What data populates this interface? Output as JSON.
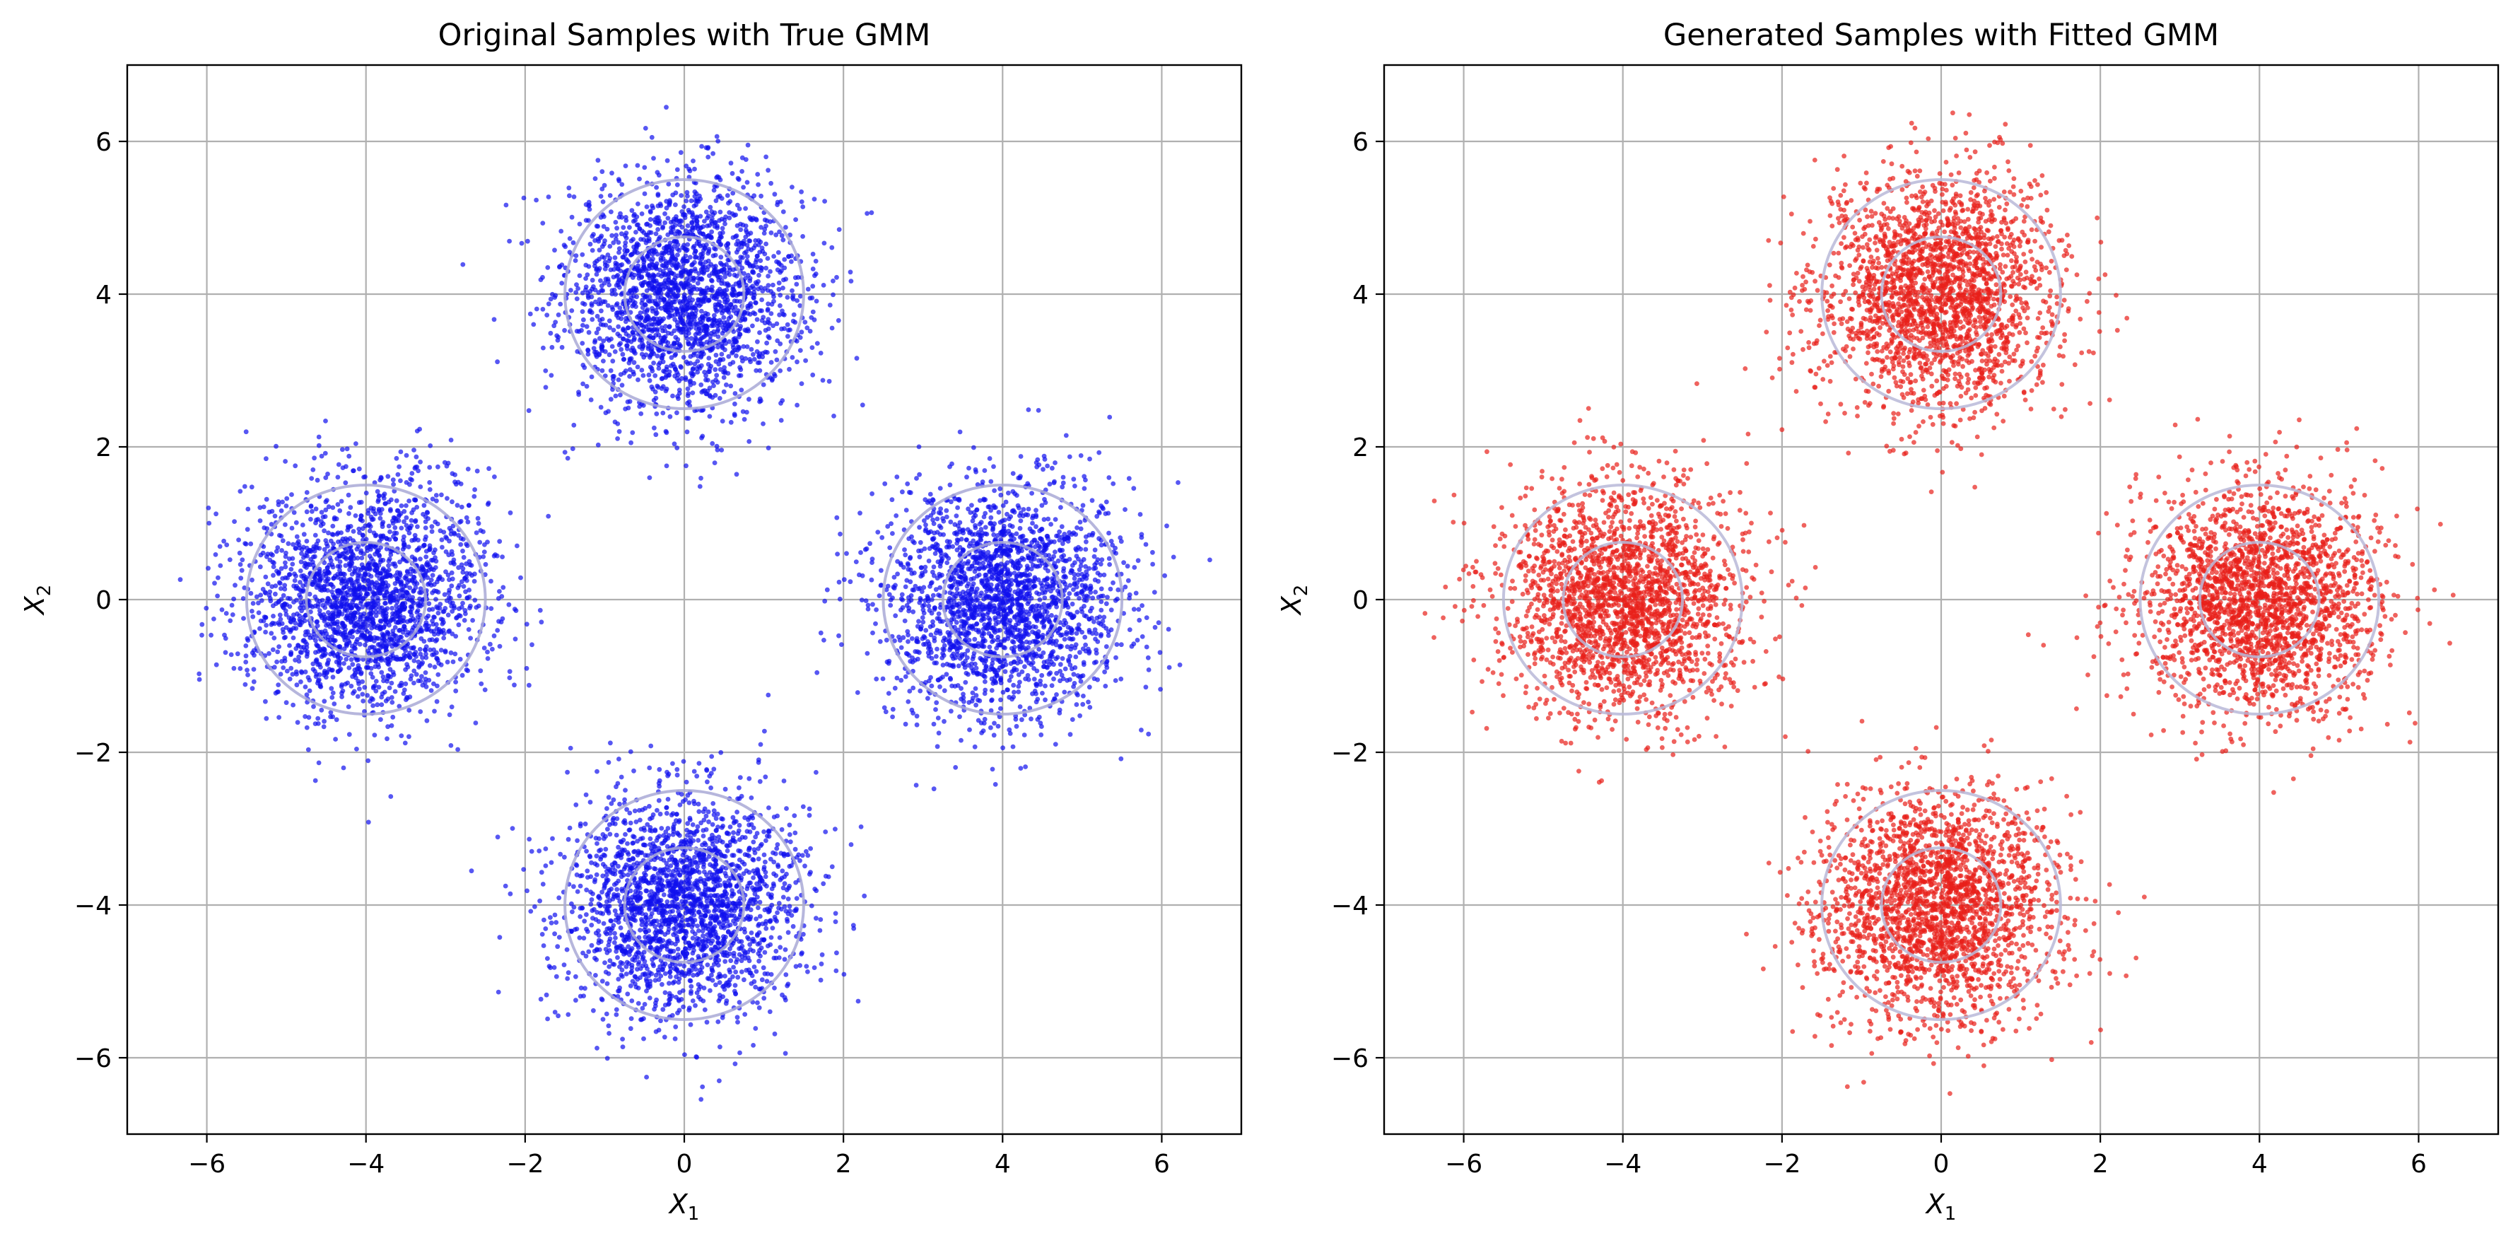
{
  "chart_data": [
    {
      "type": "scatter",
      "title": "Original Samples with True GMM",
      "xlabel": "X",
      "xlabel_sub": "1",
      "ylabel": "X",
      "ylabel_sub": "2",
      "xlim": [
        -7,
        7
      ],
      "ylim": [
        -7,
        7
      ],
      "xticks": [
        -6,
        -4,
        -2,
        0,
        2,
        4,
        6
      ],
      "yticks": [
        -6,
        -4,
        -2,
        0,
        2,
        4,
        6
      ],
      "xtick_labels": [
        "−6",
        "−4",
        "−2",
        "0",
        "2",
        "4",
        "6"
      ],
      "ytick_labels": [
        "−6",
        "−4",
        "−2",
        "0",
        "2",
        "4",
        "6"
      ],
      "grid": true,
      "point_color": "#1010ee",
      "contour_color": "#a9a9d6",
      "clusters": [
        {
          "mean": [
            0,
            4
          ],
          "std": 0.75,
          "n": 2200
        },
        {
          "mean": [
            -4,
            0
          ],
          "std": 0.75,
          "n": 2200
        },
        {
          "mean": [
            4,
            0
          ],
          "std": 0.75,
          "n": 2200
        },
        {
          "mean": [
            0,
            -4
          ],
          "std": 0.75,
          "n": 2200
        }
      ],
      "contour_levels_sigma": [
        1,
        2
      ]
    },
    {
      "type": "scatter",
      "title": "Generated Samples with Fitted GMM",
      "xlabel": "X",
      "xlabel_sub": "1",
      "ylabel": "X",
      "ylabel_sub": "2",
      "xlim": [
        -7,
        7
      ],
      "ylim": [
        -7,
        7
      ],
      "xticks": [
        -6,
        -4,
        -2,
        0,
        2,
        4,
        6
      ],
      "yticks": [
        -6,
        -4,
        -2,
        0,
        2,
        4,
        6
      ],
      "xtick_labels": [
        "−6",
        "−4",
        "−2",
        "0",
        "2",
        "4",
        "6"
      ],
      "ytick_labels": [
        "−6",
        "−4",
        "−2",
        "0",
        "2",
        "4",
        "6"
      ],
      "grid": true,
      "point_color": "#e8201a",
      "contour_color": "#b8b8d8",
      "clusters": [
        {
          "mean": [
            0,
            4
          ],
          "std": 0.75,
          "n": 2200
        },
        {
          "mean": [
            -4,
            0
          ],
          "std": 0.75,
          "n": 2200
        },
        {
          "mean": [
            4,
            0
          ],
          "std": 0.75,
          "n": 2200
        },
        {
          "mean": [
            0,
            -4
          ],
          "std": 0.75,
          "n": 2200
        }
      ],
      "contour_levels_sigma": [
        1,
        2
      ]
    }
  ]
}
